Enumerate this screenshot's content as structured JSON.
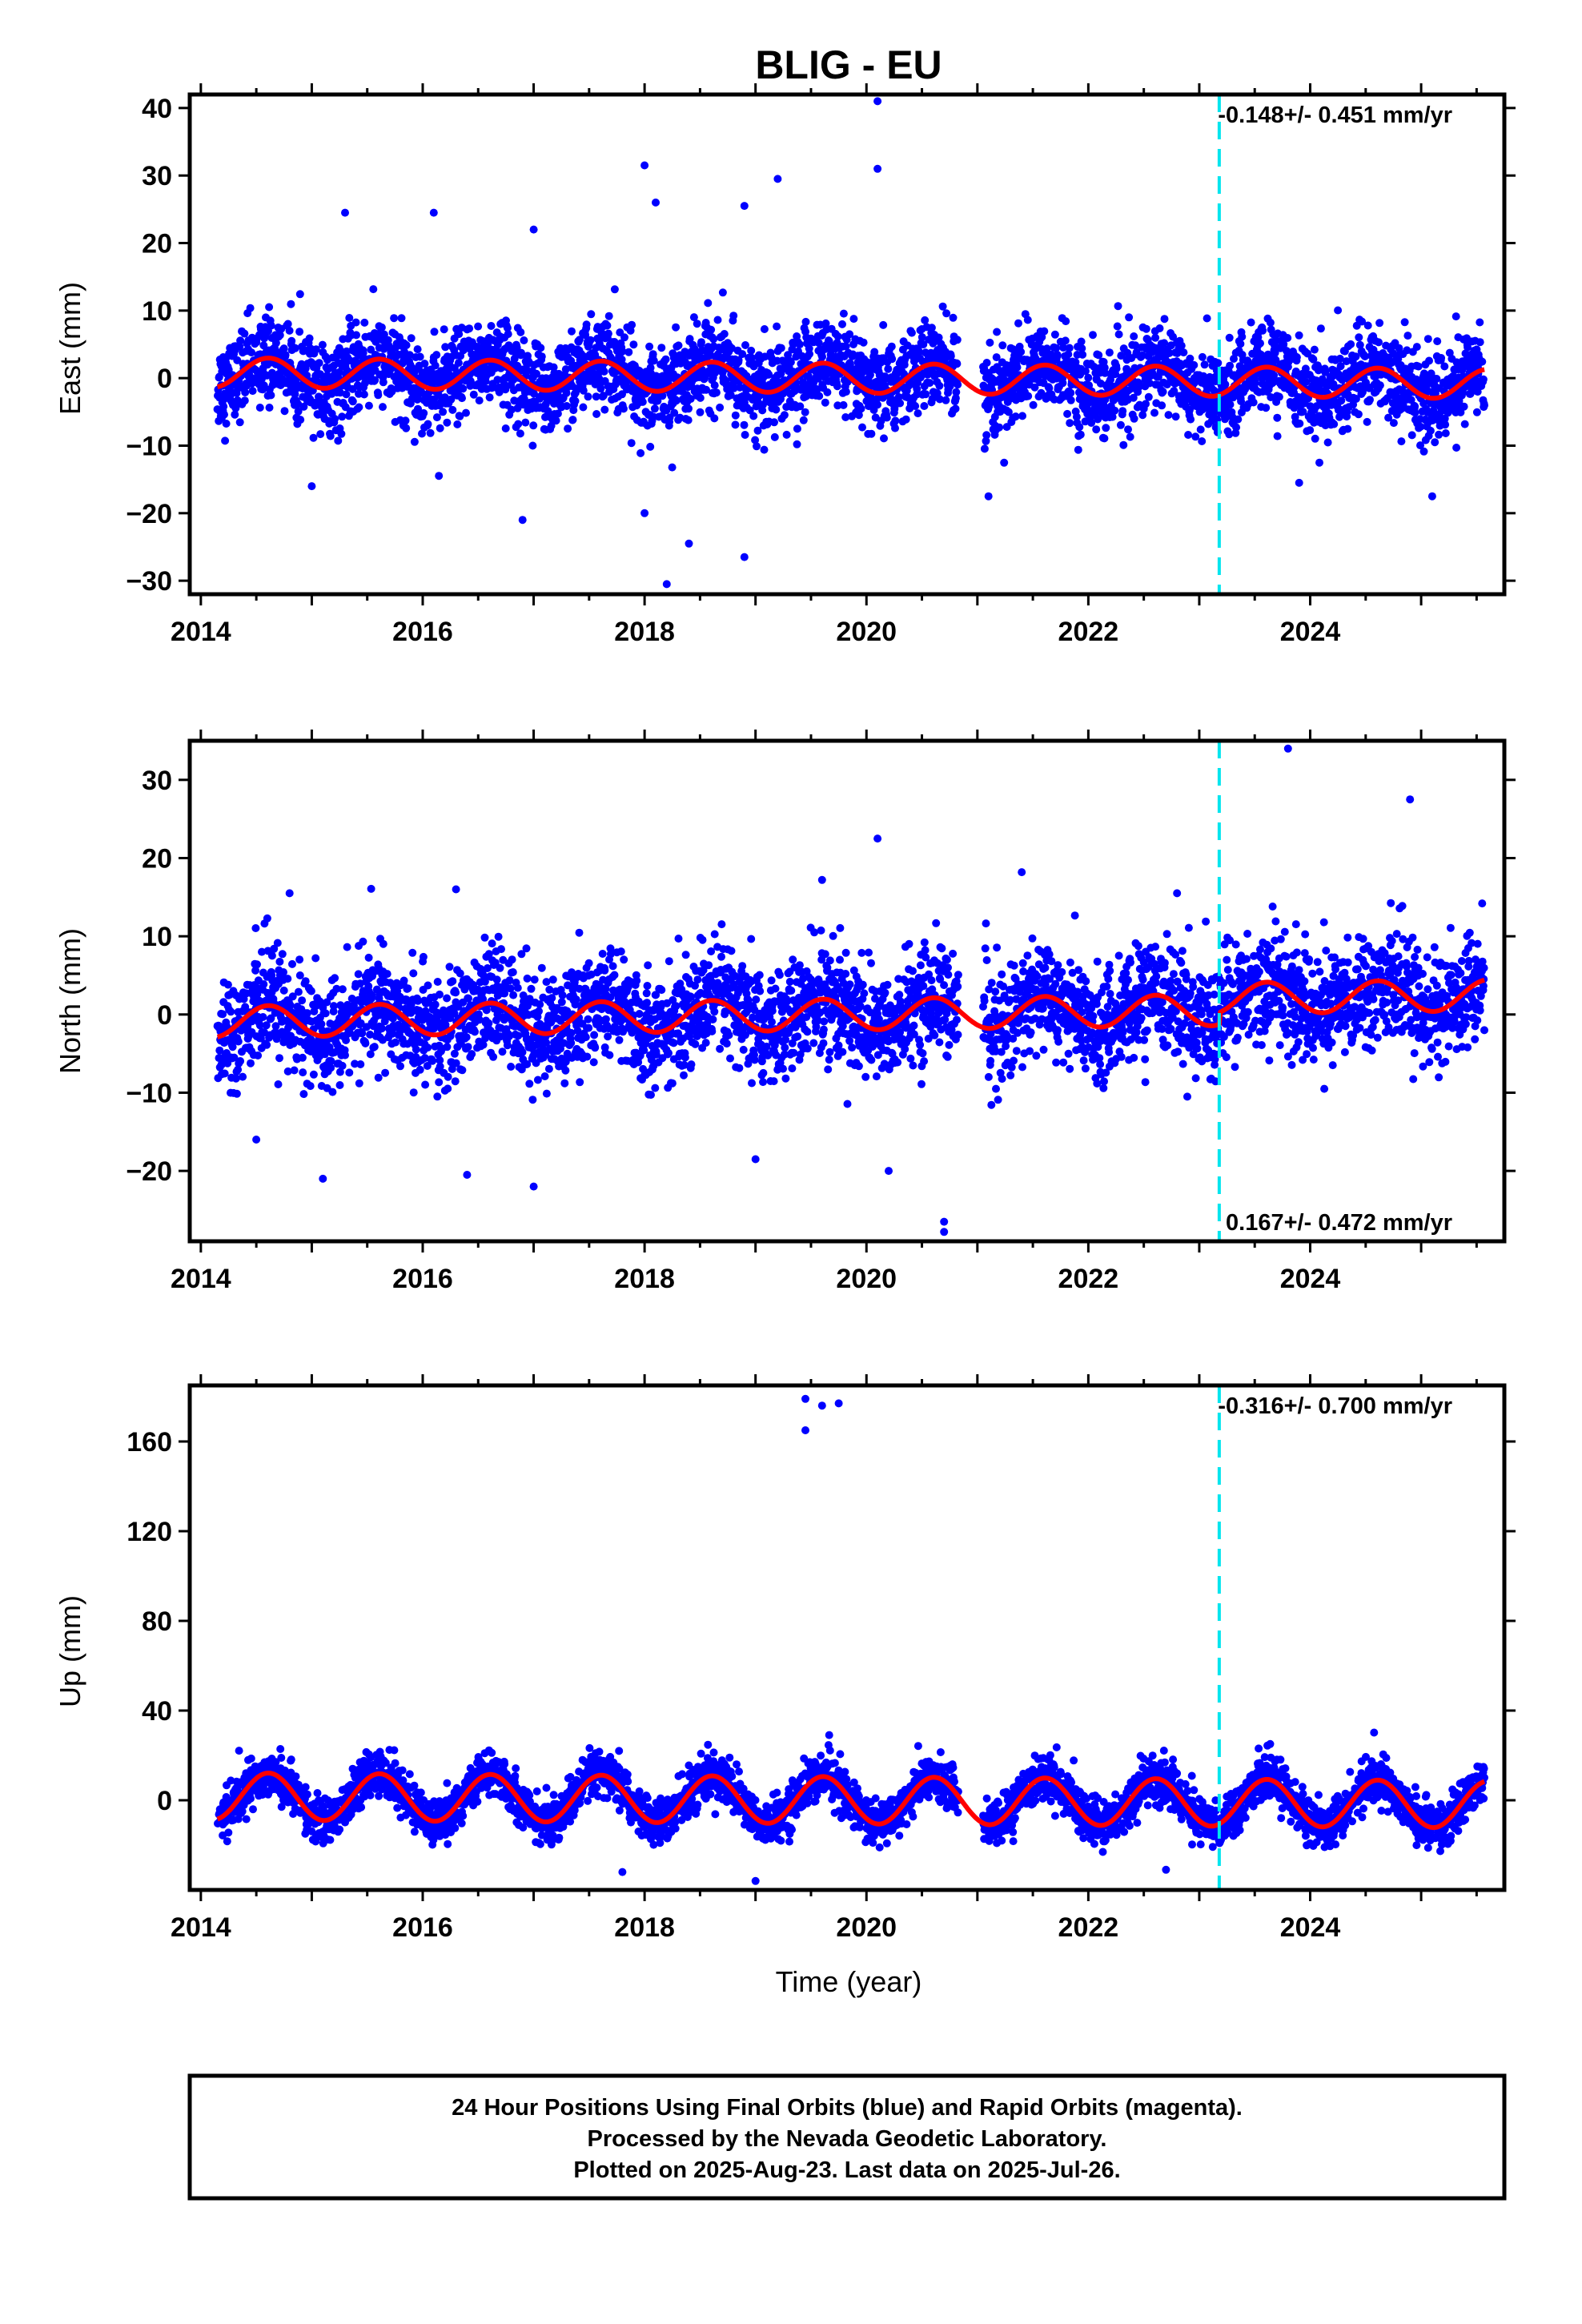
{
  "chart_data": {
    "title": "BLIG - EU",
    "type": "scatter",
    "x_ticks": [
      "2014",
      "2016",
      "2018",
      "2020",
      "2022",
      "2024"
    ],
    "xlabel": "Time (year)",
    "xlim": [
      2013.9,
      2025.75
    ],
    "vline_x": 2023.18,
    "panels": [
      {
        "ylabel": "East (mm)",
        "ylim": [
          -32,
          42
        ],
        "yticks": [
          "40",
          "30",
          "20",
          "10",
          "0",
          "−10",
          "−20",
          "−30"
        ],
        "ytick_values": [
          40,
          30,
          20,
          10,
          0,
          -10,
          -20,
          -30
        ],
        "rate_text": "-0.148+/- 0.451 mm/yr",
        "rate_pos": "top",
        "noise_sd": 3.2,
        "annual_amp": 2.2,
        "offset_at_vline": 0,
        "trend_mm_yr": -0.148,
        "outliers": [
          [
            2020.1,
            41
          ],
          [
            2020.1,
            31
          ],
          [
            2018.0,
            31.5
          ],
          [
            2018.1,
            26
          ],
          [
            2019.2,
            29.5
          ],
          [
            2015.3,
            24.5
          ],
          [
            2016.1,
            24.5
          ],
          [
            2018.9,
            25.5
          ],
          [
            2017.0,
            22
          ],
          [
            2018.2,
            -30.5
          ],
          [
            2018.9,
            -26.5
          ],
          [
            2018.4,
            -24.5
          ],
          [
            2016.9,
            -21
          ],
          [
            2015.0,
            -16
          ],
          [
            2018.0,
            -20
          ],
          [
            2025.1,
            -17.5
          ],
          [
            2021.1,
            -17.5
          ],
          [
            2023.9,
            -15.5
          ]
        ]
      },
      {
        "ylabel": "North (mm)",
        "ylim": [
          -29,
          35
        ],
        "yticks": [
          "30",
          "20",
          "10",
          "0",
          "−10",
          "−20"
        ],
        "ytick_values": [
          30,
          20,
          10,
          0,
          -10,
          -20
        ],
        "rate_text": "0.167+/- 0.472 mm/yr",
        "rate_pos": "bottom",
        "noise_sd": 3.5,
        "annual_amp": 2.0,
        "offset_at_vline": 1.5,
        "trend_mm_yr": 0.167,
        "outliers": [
          [
            2023.8,
            34
          ],
          [
            2024.9,
            27.5
          ],
          [
            2020.1,
            22.5
          ],
          [
            2021.4,
            18.2
          ],
          [
            2019.6,
            17.2
          ],
          [
            2016.3,
            16
          ],
          [
            2014.8,
            15.5
          ],
          [
            2022.8,
            15.5
          ],
          [
            2015.1,
            -21
          ],
          [
            2016.4,
            -20.5
          ],
          [
            2017.0,
            -22
          ],
          [
            2020.2,
            -20
          ],
          [
            2020.7,
            -26.5
          ],
          [
            2020.7,
            -27.8
          ],
          [
            2019.0,
            -18.5
          ],
          [
            2014.5,
            -16
          ]
        ]
      },
      {
        "ylabel": "Up (mm)",
        "ylim": [
          -40,
          185
        ],
        "yticks": [
          "160",
          "120",
          "80",
          "40",
          "0"
        ],
        "ytick_values": [
          160,
          120,
          80,
          40,
          0
        ],
        "rate_text": "-0.316+/- 0.700 mm/yr",
        "rate_pos": "top",
        "noise_sd": 5.0,
        "annual_amp": 10.5,
        "offset_at_vline": 0,
        "trend_mm_yr": -0.316,
        "outliers": [
          [
            2019.45,
            179
          ],
          [
            2019.6,
            176
          ],
          [
            2019.75,
            177
          ],
          [
            2019.45,
            165
          ],
          [
            2019.0,
            -36
          ],
          [
            2017.8,
            -32
          ],
          [
            2022.7,
            -31
          ]
        ]
      }
    ]
  },
  "footer": {
    "line1": "24 Hour Positions Using Final Orbits (blue) and Rapid Orbits (magenta).",
    "line2": "Processed by the Nevada Geodetic Laboratory.",
    "line3": "Plotted on 2025-Aug-23. Last data on 2025-Jul-26."
  },
  "colors": {
    "points": "#0000ff",
    "model": "#ff0000",
    "vline": "#00e5ee",
    "frame": "#000000"
  }
}
